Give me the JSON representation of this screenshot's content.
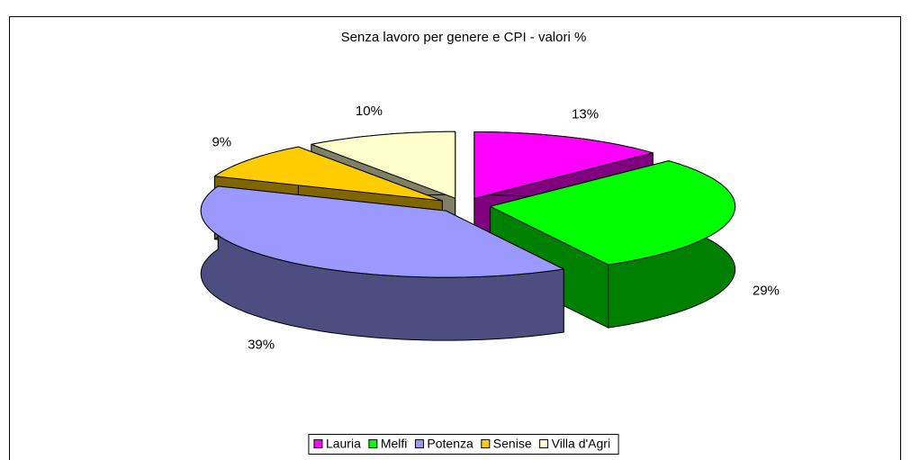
{
  "chart_data": {
    "type": "pie3d",
    "title": "Senza lavoro per genere e CPI - valori %",
    "categories": [
      "Lauria",
      "Melfi",
      "Potenza",
      "Senise",
      "Villa d'Agri"
    ],
    "values": [
      13,
      29,
      39,
      9,
      10
    ],
    "value_labels": [
      "13%",
      "29%",
      "39%",
      "9%",
      "10%"
    ],
    "colors": [
      "#ff00ff",
      "#00ff00",
      "#9999ff",
      "#ffcc00",
      "#ffffcc"
    ],
    "legend": "bottom"
  }
}
